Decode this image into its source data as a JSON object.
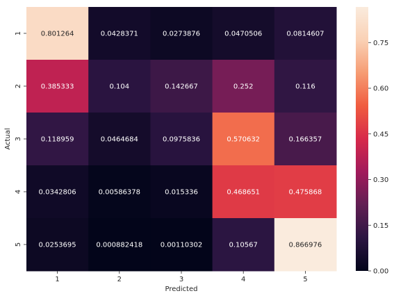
{
  "chart_data": {
    "type": "heatmap",
    "title": "",
    "xlabel": "Predicted",
    "ylabel": "Actual",
    "x_categories": [
      "1",
      "2",
      "3",
      "4",
      "5"
    ],
    "y_categories": [
      "1",
      "2",
      "3",
      "4",
      "5"
    ],
    "values": [
      [
        0.801264,
        0.0428371,
        0.0273876,
        0.0470506,
        0.0814607
      ],
      [
        0.385333,
        0.104,
        0.142667,
        0.252,
        0.116
      ],
      [
        0.118959,
        0.0464684,
        0.0975836,
        0.570632,
        0.166357
      ],
      [
        0.0342806,
        0.00586378,
        0.015336,
        0.468651,
        0.475868
      ],
      [
        0.0253695,
        0.000882418,
        0.00110302,
        0.10567,
        0.866976
      ]
    ],
    "cell_labels": [
      [
        "0.801264",
        "0.0428371",
        "0.0273876",
        "0.0470506",
        "0.0814607"
      ],
      [
        "0.385333",
        "0.104",
        "0.142667",
        "0.252",
        "0.116"
      ],
      [
        "0.118959",
        "0.0464684",
        "0.0975836",
        "0.570632",
        "0.166357"
      ],
      [
        "0.0342806",
        "0.00586378",
        "0.015336",
        "0.468651",
        "0.475868"
      ],
      [
        "0.0253695",
        "0.000882418",
        "0.00110302",
        "0.10567",
        "0.866976"
      ]
    ],
    "colorbar": {
      "range": [
        0,
        0.866976
      ],
      "ticks": [
        0.0,
        0.15,
        0.3,
        0.45,
        0.6,
        0.75
      ],
      "tick_labels": [
        "0.00",
        "0.15",
        "0.30",
        "0.45",
        "0.60",
        "0.75"
      ]
    },
    "colormap": "rocket",
    "colormap_stops": [
      "#03051a",
      "#2c1542",
      "#611f53",
      "#a11a5b",
      "#d7294a",
      "#f05c3f",
      "#f69c73",
      "#fad1b5",
      "#faebdd"
    ],
    "grid": false,
    "legend": "colorbar-right"
  }
}
